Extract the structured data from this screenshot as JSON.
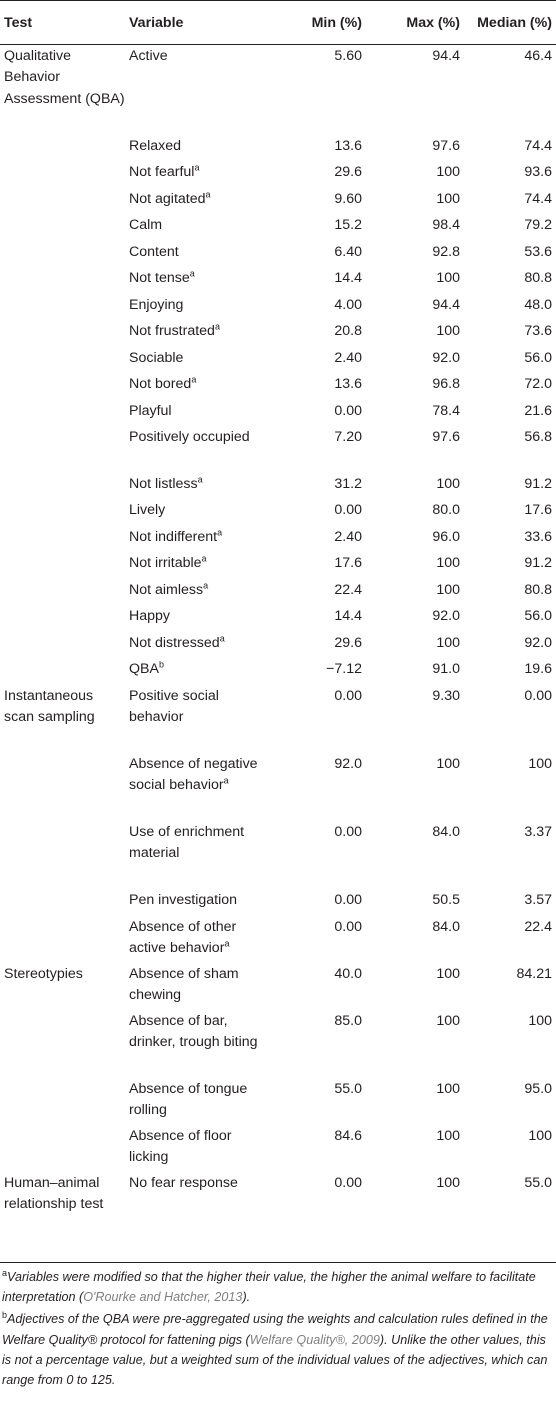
{
  "header": {
    "test": "Test",
    "variable": "Variable",
    "min": "Min (%)",
    "max": "Max (%)",
    "median": "Median (%)"
  },
  "rows": [
    {
      "test": "Qualitative Behavior Assessment (QBA)",
      "variable": "Active",
      "sup": "",
      "min": "5.60",
      "max": "94.4",
      "median": "46.4",
      "h": 90
    },
    {
      "test": "",
      "variable": "Relaxed",
      "sup": "",
      "min": "13.6",
      "max": "97.6",
      "median": "74.4",
      "h": 26
    },
    {
      "test": "",
      "variable": "Not fearful",
      "sup": "a",
      "min": "29.6",
      "max": "100",
      "median": "93.6",
      "h": 27
    },
    {
      "test": "",
      "variable": "Not agitated",
      "sup": "a",
      "min": "9.60",
      "max": "100",
      "median": "74.4",
      "h": 26
    },
    {
      "test": "",
      "variable": "Calm",
      "sup": "",
      "min": "15.2",
      "max": "98.4",
      "median": "79.2",
      "h": 27
    },
    {
      "test": "",
      "variable": "Content",
      "sup": "",
      "min": "6.40",
      "max": "92.8",
      "median": "53.6",
      "h": 26
    },
    {
      "test": "",
      "variable": "Not tense",
      "sup": "a",
      "min": "14.4",
      "max": "100",
      "median": "80.8",
      "h": 27
    },
    {
      "test": "",
      "variable": "Enjoying",
      "sup": "",
      "min": "4.00",
      "max": "94.4",
      "median": "48.0",
      "h": 26
    },
    {
      "test": "",
      "variable": "Not frustrated",
      "sup": "a",
      "min": "20.8",
      "max": "100",
      "median": "73.6",
      "h": 27
    },
    {
      "test": "",
      "variable": "Sociable",
      "sup": "",
      "min": "2.40",
      "max": "92.0",
      "median": "56.0",
      "h": 26
    },
    {
      "test": "",
      "variable": "Not bored",
      "sup": "a",
      "min": "13.6",
      "max": "96.8",
      "median": "72.0",
      "h": 27
    },
    {
      "test": "",
      "variable": "Playful",
      "sup": "",
      "min": "0.00",
      "max": "78.4",
      "median": "21.6",
      "h": 26
    },
    {
      "test": "",
      "variable": "Positively occupied",
      "sup": "",
      "min": "7.20",
      "max": "97.6",
      "median": "56.8",
      "h": 47
    },
    {
      "test": "",
      "variable": "Not listless",
      "sup": "a",
      "min": "31.2",
      "max": "100",
      "median": "91.2",
      "h": 26
    },
    {
      "test": "",
      "variable": "Lively",
      "sup": "",
      "min": "0.00",
      "max": "80.0",
      "median": "17.6",
      "h": 27
    },
    {
      "test": "",
      "variable": "Not indifferent",
      "sup": "a",
      "min": "2.40",
      "max": "96.0",
      "median": "33.6",
      "h": 26
    },
    {
      "test": "",
      "variable": "Not irritable",
      "sup": "a",
      "min": "17.6",
      "max": "100",
      "median": "91.2",
      "h": 27
    },
    {
      "test": "",
      "variable": "Not aimless",
      "sup": "a",
      "min": "22.4",
      "max": "100",
      "median": "80.8",
      "h": 26
    },
    {
      "test": "",
      "variable": "Happy",
      "sup": "",
      "min": "14.4",
      "max": "92.0",
      "median": "56.0",
      "h": 27
    },
    {
      "test": "",
      "variable": "Not distressed",
      "sup": "a",
      "min": "29.6",
      "max": "100",
      "median": "92.0",
      "h": 26
    },
    {
      "test": "",
      "variable": "QBA",
      "sup": "b",
      "min": "−7.12",
      "max": "91.0",
      "median": "19.6",
      "h": 27
    },
    {
      "test": "Instantaneous scan sampling",
      "variable": "Positive social behavior",
      "sup": "",
      "min": "0.00",
      "max": "9.30",
      "median": "0.00",
      "h": 68
    },
    {
      "test": "",
      "variable": "Absence of negative social behavior",
      "sup": "a",
      "min": "92.0",
      "max": "100",
      "median": "100",
      "h": 68
    },
    {
      "test": "",
      "variable": "Use of enrichment material",
      "sup": "",
      "min": "0.00",
      "max": "84.0",
      "median": "3.37",
      "h": 68
    },
    {
      "test": "",
      "variable": "Pen investigation",
      "sup": "",
      "min": "0.00",
      "max": "50.5",
      "median": "3.57",
      "h": 27
    },
    {
      "test": "",
      "variable": "Absence of other active behavior",
      "sup": "a",
      "min": "0.00",
      "max": "84.0",
      "median": "22.4",
      "h": 47
    },
    {
      "test": "Stereotypies",
      "variable": "Absence of sham chewing",
      "sup": "",
      "min": "40.0",
      "max": "100",
      "median": "84.21",
      "h": 47
    },
    {
      "test": "",
      "variable": "Absence of bar, drinker, trough biting",
      "sup": "",
      "min": "85.0",
      "max": "100",
      "median": "100",
      "h": 68
    },
    {
      "test": "",
      "variable": "Absence of tongue rolling",
      "sup": "",
      "min": "55.0",
      "max": "100",
      "median": "95.0",
      "h": 47
    },
    {
      "test": "",
      "variable": "Absence of floor licking",
      "sup": "",
      "min": "84.6",
      "max": "100",
      "median": "100",
      "h": 47
    },
    {
      "test": "Human–animal relationship test",
      "variable": "No fear response",
      "sup": "",
      "min": "0.00",
      "max": "100",
      "median": "55.0",
      "h": 90
    }
  ],
  "footnotes": {
    "a": {
      "mark": "a",
      "text": "Variables were modified so that the higher their value, the higher the animal welfare to facilitate interpretation (",
      "cite": "O'Rourke and Hatcher, 2013",
      "end": ")."
    },
    "b": {
      "mark": "b",
      "text": "Adjectives of the QBA were pre-aggregated using the weights and calculation rules defined in the Welfare Quality® protocol for fattening pigs (",
      "cite": "Welfare Quality®, 2009",
      "end": "). Unlike the other values, this is not a percentage value, but a weighted sum of the individual values of the adjectives, which can range from 0 to 125."
    }
  }
}
